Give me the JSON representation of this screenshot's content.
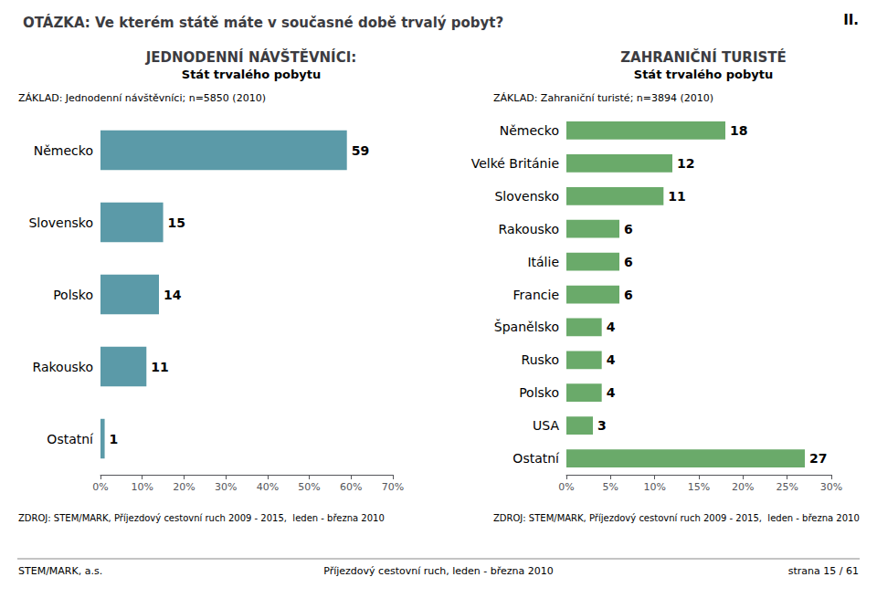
{
  "title": "OTÁZKA: Ve kterém státě máte v současné době trvalý pobyt?",
  "annotations": [
    "II.",
    "STEM/MARK, a.s.",
    "Příjezdový cestovní ruch, leden - března 2010",
    "strana 15 / 61"
  ],
  "chart_data": [
    {
      "type": "bar",
      "orientation": "horizontal",
      "title": "JEDNODENNÍ NÁVŠTĚVNÍCI:",
      "subtitle": "Stát trvalého pobytu",
      "annotations": [
        "ZÁKLAD: Jednodenní návštěvníci; n=5850 (2010)",
        "ZDROJ: STEM/MARK, Příjezdový cestovní ruch 2009 - 2015,  leden - března 2010"
      ],
      "categories": [
        "Německo",
        "Slovensko",
        "Polsko",
        "Rakousko",
        "Ostatní"
      ],
      "values": [
        59,
        15,
        14,
        11,
        1
      ],
      "color": "#5b9aa8",
      "xlim": [
        0,
        70
      ],
      "xticks": [
        {
          "value": 0,
          "label": "0%"
        },
        {
          "value": 10,
          "label": "10%"
        },
        {
          "value": 20,
          "label": "20%"
        },
        {
          "value": 30,
          "label": "30%"
        },
        {
          "value": 40,
          "label": "40%"
        },
        {
          "value": 50,
          "label": "50%"
        },
        {
          "value": 60,
          "label": "60%"
        },
        {
          "value": 70,
          "label": "70%"
        }
      ],
      "data_labels": true,
      "grid": false
    },
    {
      "type": "bar",
      "orientation": "horizontal",
      "title": "ZAHRANIČNÍ TURISTÉ",
      "subtitle": "Stát trvalého pobytu",
      "annotations": [
        "ZÁKLAD: Zahraniční turisté; n=3894 (2010)",
        "ZDROJ: STEM/MARK, Příjezdový cestovní ruch 2009 - 2015,  leden - března 2010"
      ],
      "categories": [
        "Německo",
        "Velké Británie",
        "Slovensko",
        "Rakousko",
        "Itálie",
        "Francie",
        "Španělsko",
        "Rusko",
        "Polsko",
        "USA",
        "Ostatní"
      ],
      "values": [
        18,
        12,
        11,
        6,
        6,
        6,
        4,
        4,
        4,
        3,
        27
      ],
      "color": "#6aaa6a",
      "xlim": [
        0,
        30
      ],
      "xticks": [
        {
          "value": 0,
          "label": "0%"
        },
        {
          "value": 5,
          "label": "5%"
        },
        {
          "value": 10,
          "label": "10%"
        },
        {
          "value": 15,
          "label": "15%"
        },
        {
          "value": 20,
          "label": "20%"
        },
        {
          "value": 25,
          "label": "25%"
        },
        {
          "value": 30,
          "label": "30%"
        }
      ],
      "data_labels": true,
      "grid": false
    }
  ]
}
